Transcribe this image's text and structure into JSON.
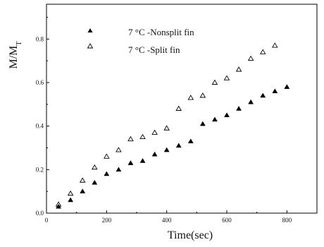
{
  "chart_data": {
    "type": "scatter",
    "title": "",
    "xlabel": "Time(sec)",
    "ylabel": "M/M",
    "ylabel_subscript": "T",
    "xlim": [
      0,
      900
    ],
    "ylim": [
      0,
      0.96
    ],
    "xticks": [
      0,
      200,
      400,
      600,
      800
    ],
    "xtick_labels": [
      "0",
      "200",
      "400",
      "600",
      "800"
    ],
    "yticks": [
      0.0,
      0.2,
      0.4,
      0.6,
      0.8
    ],
    "ytick_labels": [
      "0.0",
      "0.2",
      "0.4",
      "0.6",
      "0.8"
    ],
    "legend_position": "top-left",
    "grid": false,
    "series": [
      {
        "name": "7 °C -Nonsplit fin",
        "marker": "filled-triangle",
        "color": "#000000",
        "x": [
          40,
          80,
          120,
          160,
          200,
          240,
          280,
          320,
          360,
          400,
          440,
          480,
          520,
          560,
          600,
          640,
          680,
          720,
          760,
          800
        ],
        "y": [
          0.03,
          0.06,
          0.1,
          0.14,
          0.18,
          0.2,
          0.23,
          0.24,
          0.27,
          0.29,
          0.31,
          0.33,
          0.41,
          0.43,
          0.45,
          0.48,
          0.51,
          0.54,
          0.56,
          0.58
        ]
      },
      {
        "name": "7 °C -Split fin",
        "marker": "open-triangle",
        "color": "#000000",
        "x": [
          40,
          80,
          120,
          160,
          200,
          240,
          280,
          320,
          360,
          400,
          440,
          480,
          520,
          560,
          600,
          640,
          680,
          720,
          760
        ],
        "y": [
          0.04,
          0.09,
          0.15,
          0.21,
          0.26,
          0.29,
          0.34,
          0.35,
          0.37,
          0.39,
          0.48,
          0.53,
          0.54,
          0.6,
          0.62,
          0.66,
          0.71,
          0.74,
          0.77
        ]
      }
    ]
  }
}
